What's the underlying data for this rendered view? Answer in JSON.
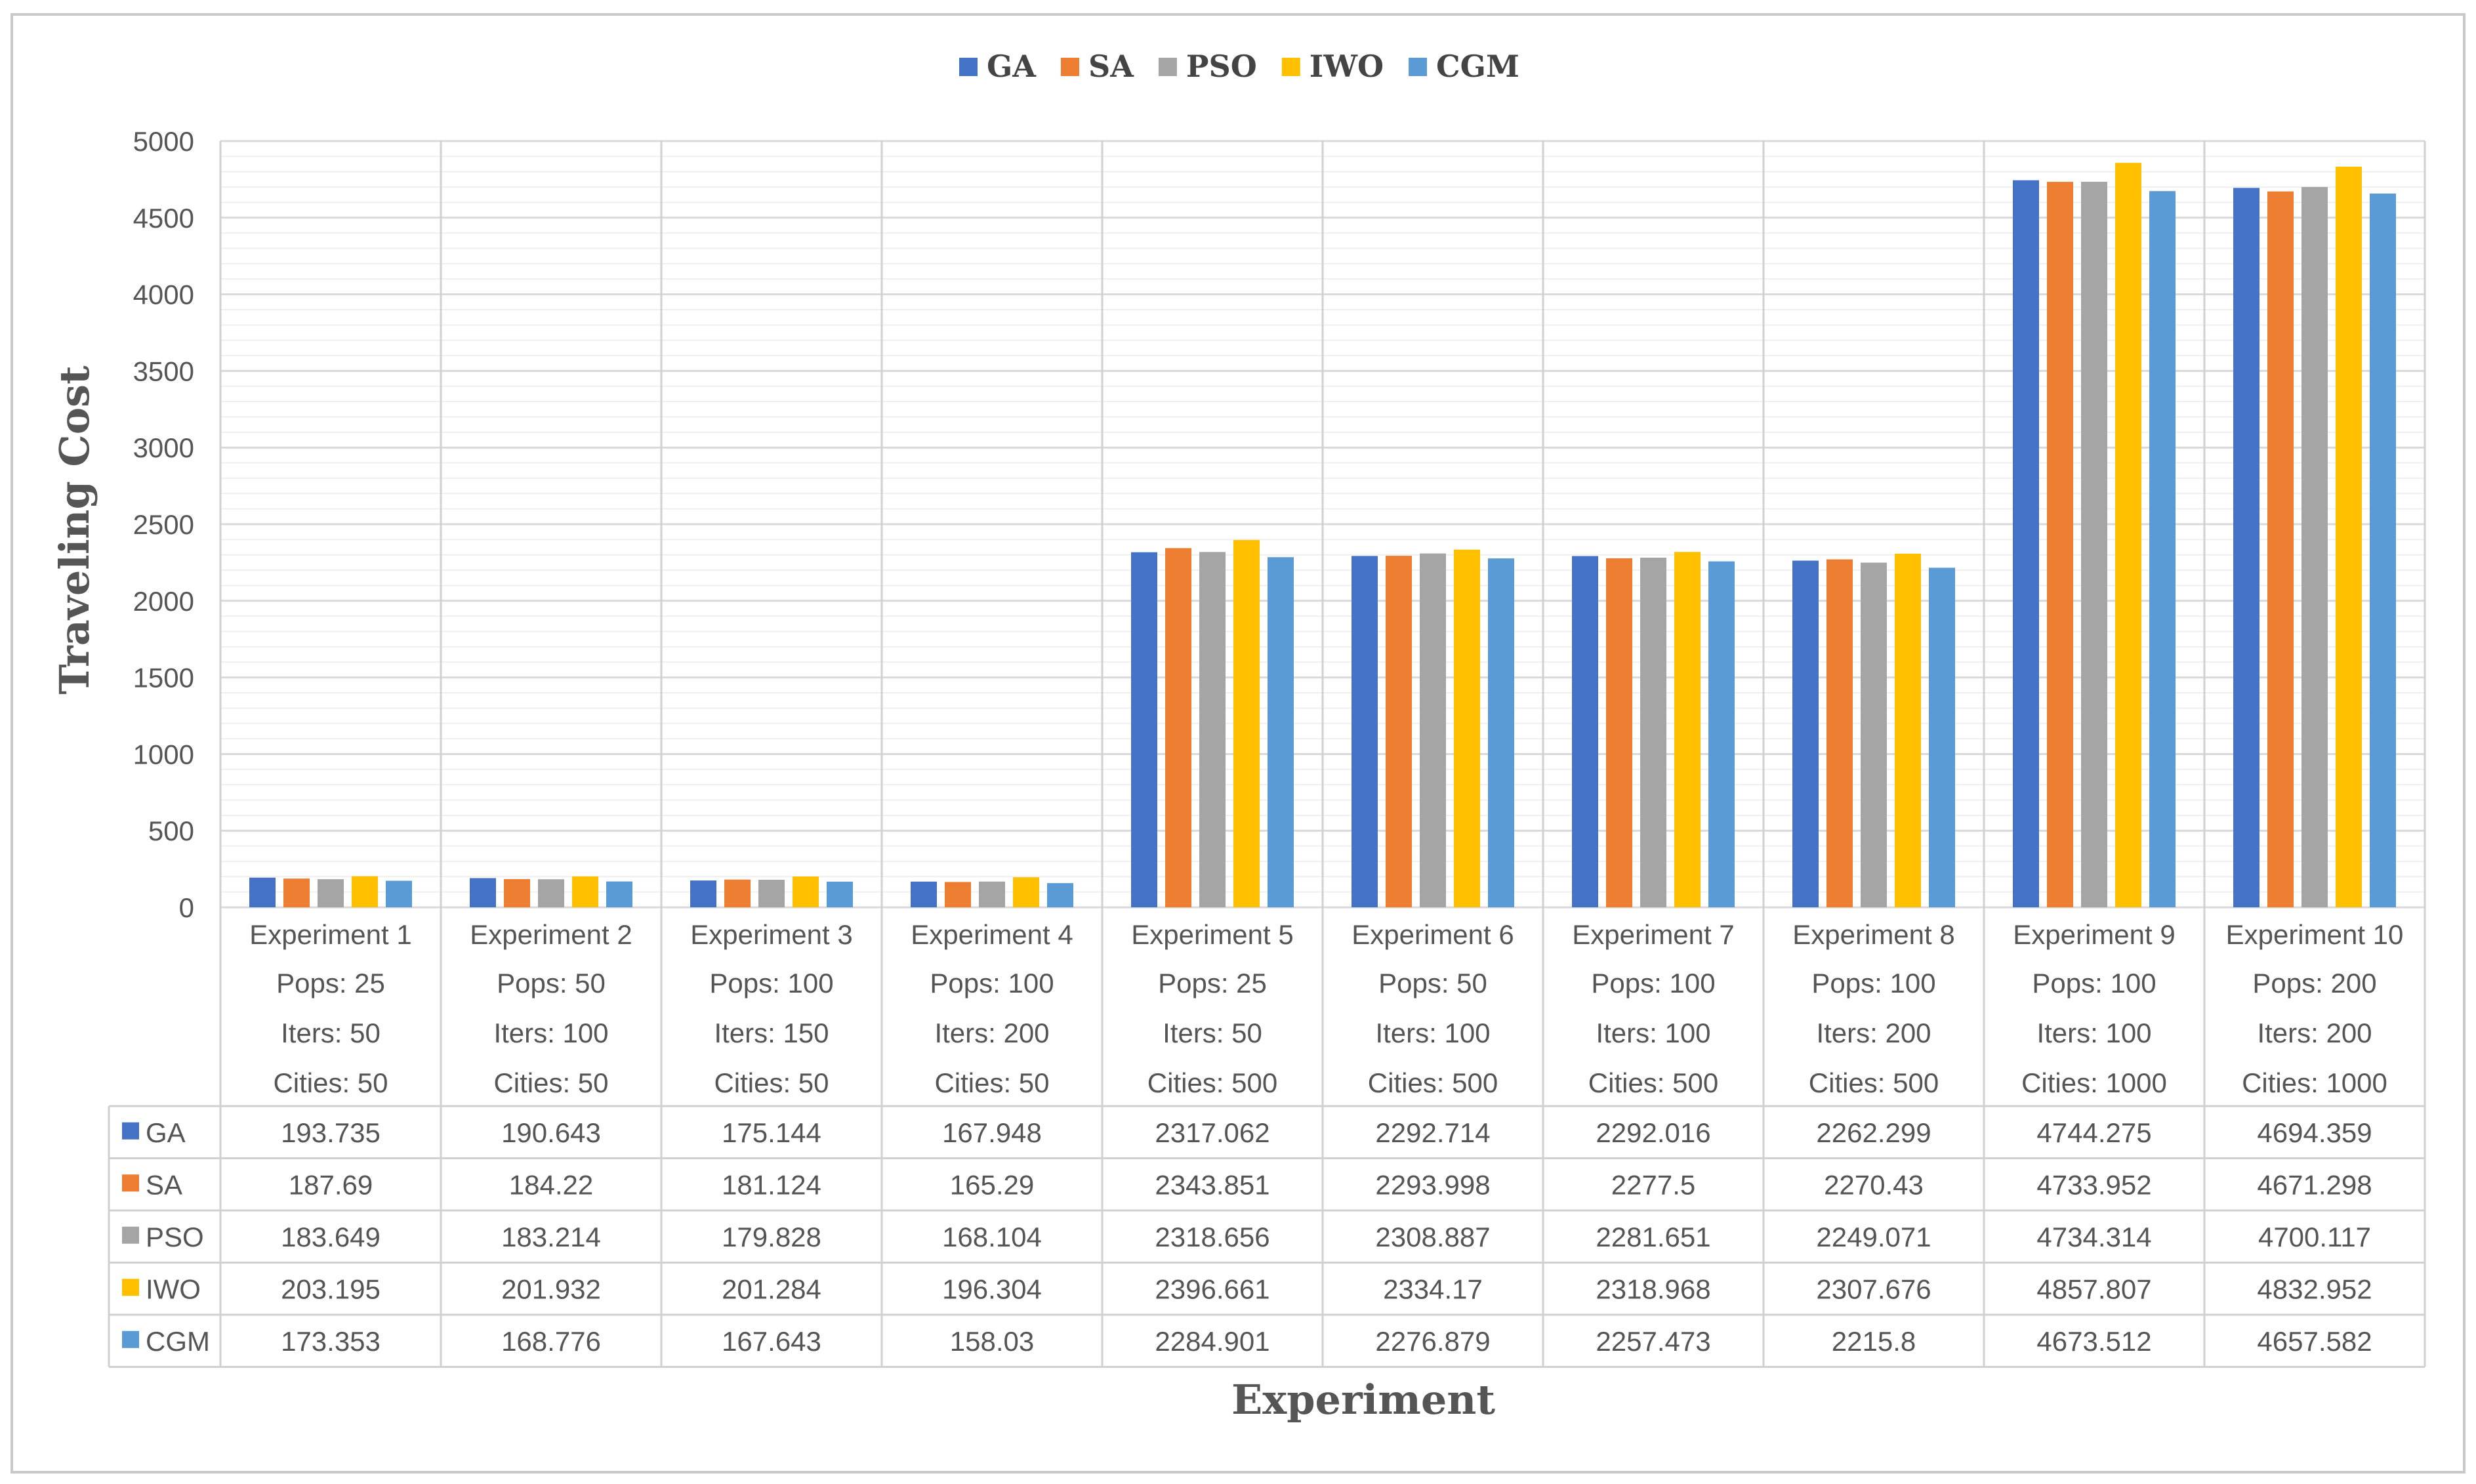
{
  "chart_data": {
    "type": "bar",
    "title": "",
    "xlabel": "Experiment",
    "ylabel": "Traveling Cost",
    "ylim": [
      0,
      5000
    ],
    "yticks": [
      "0",
      "500",
      "1000",
      "1500",
      "2000",
      "2500",
      "3000",
      "3500",
      "4000",
      "4500",
      "5000"
    ],
    "legend_position": "top-center",
    "grid": true,
    "categories": [
      {
        "name": "Experiment 1",
        "pops": "Pops: 25",
        "iters": "Iters: 50",
        "cities": "Cities: 50"
      },
      {
        "name": "Experiment 2",
        "pops": "Pops: 50",
        "iters": "Iters: 100",
        "cities": "Cities: 50"
      },
      {
        "name": "Experiment 3",
        "pops": "Pops: 100",
        "iters": "Iters: 150",
        "cities": "Cities: 50"
      },
      {
        "name": "Experiment 4",
        "pops": "Pops: 100",
        "iters": "Iters: 200",
        "cities": "Cities: 50"
      },
      {
        "name": "Experiment 5",
        "pops": "Pops: 25",
        "iters": "Iters: 50",
        "cities": "Cities: 500"
      },
      {
        "name": "Experiment 6",
        "pops": "Pops: 50",
        "iters": "Iters: 100",
        "cities": "Cities: 500"
      },
      {
        "name": "Experiment 7",
        "pops": "Pops: 100",
        "iters": "Iters: 100",
        "cities": "Cities: 500"
      },
      {
        "name": "Experiment 8",
        "pops": "Pops: 100",
        "iters": "Iters: 200",
        "cities": "Cities: 500"
      },
      {
        "name": "Experiment 9",
        "pops": "Pops: 100",
        "iters": "Iters: 100",
        "cities": "Cities: 1000"
      },
      {
        "name": "Experiment 10",
        "pops": "Pops: 200",
        "iters": "Iters: 200",
        "cities": "Cities: 1000"
      }
    ],
    "series": [
      {
        "name": "GA",
        "color": "#4472c4",
        "values": [
          "193.735",
          "190.643",
          "175.144",
          "167.948",
          "2317.062",
          "2292.714",
          "2292.016",
          "2262.299",
          "4744.275",
          "4694.359"
        ]
      },
      {
        "name": "SA",
        "color": "#ed7d31",
        "values": [
          "187.69",
          "184.22",
          "181.124",
          "165.29",
          "2343.851",
          "2293.998",
          "2277.5",
          "2270.43",
          "4733.952",
          "4671.298"
        ]
      },
      {
        "name": "PSO",
        "color": "#a5a5a5",
        "values": [
          "183.649",
          "183.214",
          "179.828",
          "168.104",
          "2318.656",
          "2308.887",
          "2281.651",
          "2249.071",
          "4734.314",
          "4700.117"
        ]
      },
      {
        "name": "IWO",
        "color": "#ffc000",
        "values": [
          "203.195",
          "201.932",
          "201.284",
          "196.304",
          "2396.661",
          "2334.17",
          "2318.968",
          "2307.676",
          "4857.807",
          "4832.952"
        ]
      },
      {
        "name": "CGM",
        "color": "#5b9bd5",
        "values": [
          "173.353",
          "168.776",
          "167.643",
          "158.03",
          "2284.901",
          "2276.879",
          "2257.473",
          "2215.8",
          "4673.512",
          "4657.582"
        ]
      }
    ]
  }
}
